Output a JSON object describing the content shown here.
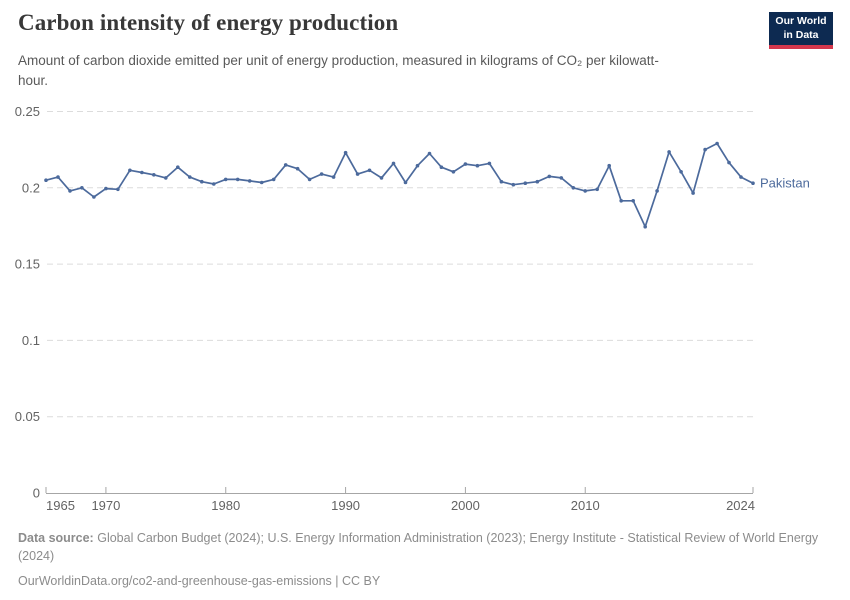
{
  "header": {
    "title": "Carbon intensity of energy production",
    "subtitle": "Amount of carbon dioxide emitted per unit of energy production, measured in kilograms of CO₂ per kilowatt-hour.",
    "logo": {
      "line1": "Our World",
      "line2": "in Data"
    }
  },
  "chart_data": {
    "type": "line",
    "title": "Carbon intensity of energy production",
    "ylabel": "",
    "xlabel": "",
    "unit": "kilograms of CO₂ per kilowatt-hour",
    "xlim": [
      1965,
      2024
    ],
    "ylim": [
      0,
      0.25
    ],
    "x_ticks": [
      1965,
      1970,
      1980,
      1990,
      2000,
      2010,
      2024
    ],
    "y_ticks": [
      0,
      0.05,
      0.1,
      0.15,
      0.2,
      0.25
    ],
    "grid": "horizontal-dashed",
    "legend_position": "end-of-line-label",
    "colors": {
      "line": "#4c6a9c",
      "gridline": "#dcdcdc",
      "axis": "#a6a6a6",
      "tick_label": "#636363"
    },
    "x": [
      1965,
      1966,
      1967,
      1968,
      1969,
      1970,
      1971,
      1972,
      1973,
      1974,
      1975,
      1976,
      1977,
      1978,
      1979,
      1980,
      1981,
      1982,
      1983,
      1984,
      1985,
      1986,
      1987,
      1988,
      1989,
      1990,
      1991,
      1992,
      1993,
      1994,
      1995,
      1996,
      1997,
      1998,
      1999,
      2000,
      2001,
      2002,
      2003,
      2004,
      2005,
      2006,
      2007,
      2008,
      2009,
      2010,
      2011,
      2012,
      2013,
      2014,
      2015,
      2016,
      2017,
      2018,
      2019,
      2020,
      2021,
      2022,
      2023,
      2024
    ],
    "series": [
      {
        "name": "Pakistan",
        "color": "#4c6a9c",
        "values": [
          0.205,
          0.207,
          0.198,
          0.2,
          0.194,
          0.1995,
          0.199,
          0.2115,
          0.21,
          0.2085,
          0.2065,
          0.2135,
          0.207,
          0.204,
          0.2025,
          0.2055,
          0.2055,
          0.2045,
          0.2035,
          0.2055,
          0.215,
          0.2125,
          0.2055,
          0.209,
          0.207,
          0.223,
          0.209,
          0.2115,
          0.2065,
          0.216,
          0.2035,
          0.2145,
          0.2225,
          0.2135,
          0.2105,
          0.2155,
          0.2145,
          0.216,
          0.204,
          0.202,
          0.203,
          0.204,
          0.2075,
          0.2065,
          0.2,
          0.198,
          0.199,
          0.2145,
          0.1915,
          0.1915,
          0.1745,
          0.198,
          0.2235,
          0.2105,
          0.1965,
          0.225,
          0.229,
          0.2165,
          0.207,
          0.203
        ]
      }
    ]
  },
  "footer": {
    "source_label": "Data source:",
    "source_text": "Global Carbon Budget (2024); U.S. Energy Information Administration (2023); Energy Institute - Statistical Review of World Energy (2024)",
    "url_line": "OurWorldinData.org/co2-and-greenhouse-gas-emissions | CC BY"
  }
}
